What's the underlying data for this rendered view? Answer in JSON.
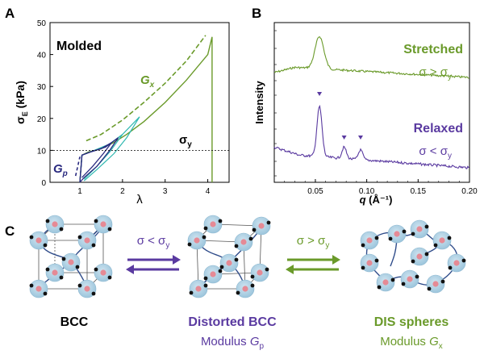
{
  "panels": {
    "a_label": "A",
    "b_label": "B",
    "c_label": "C"
  },
  "colors": {
    "green": "#6a9a2a",
    "purple": "#5a3aa0",
    "navy": "#2a2a80",
    "teal": "#2fb8b0",
    "sphere": "#a9cfe3",
    "core": "#e58a95",
    "chain": "#2f4c8a"
  },
  "chart_data": [
    {
      "type": "line",
      "panel": "A",
      "annotations": {
        "title": "Molded",
        "gx": "G",
        "gx_sub": "x",
        "gp": "G",
        "gp_sub": "p",
        "sigma": "σ",
        "sigma_sub": "y"
      },
      "ylabel": "σ",
      "ylabel_sub": "E",
      "ylabel_unit": "(kPa)",
      "xlabel": "λ",
      "xlim": [
        0.3,
        4.5
      ],
      "ylim": [
        0,
        50
      ],
      "xticks": [
        "1",
        "2",
        "3",
        "4"
      ],
      "yticks": [
        "0",
        "10",
        "20",
        "30",
        "40",
        "50"
      ],
      "yield_stress": 10,
      "series": [
        {
          "style": "green-solid",
          "points": [
            [
              1.0,
              0
            ],
            [
              1.05,
              8.5
            ],
            [
              1.2,
              9.5
            ],
            [
              1.5,
              10.5
            ],
            [
              1.8,
              12.5
            ],
            [
              2.1,
              15
            ],
            [
              2.5,
              19
            ],
            [
              3.0,
              25
            ],
            [
              3.5,
              32
            ],
            [
              4.0,
              40
            ],
            [
              4.1,
              45.5
            ],
            [
              4.1,
              0
            ]
          ]
        },
        {
          "style": "green-dashed",
          "points": [
            [
              1.15,
              13
            ],
            [
              1.5,
              15
            ],
            [
              2.0,
              19.5
            ],
            [
              2.5,
              25
            ],
            [
              3.0,
              31
            ],
            [
              3.5,
              38
            ],
            [
              3.95,
              46
            ]
          ]
        },
        {
          "style": "teal-loop",
          "points": [
            [
              1.0,
              0
            ],
            [
              1.05,
              8.5
            ],
            [
              1.3,
              9.8
            ],
            [
              1.7,
              12
            ],
            [
              2.0,
              15
            ],
            [
              2.4,
              20.5
            ],
            [
              2.1,
              14
            ],
            [
              1.8,
              9
            ],
            [
              1.4,
              4
            ],
            [
              1.1,
              0.5
            ]
          ]
        },
        {
          "style": "teal-loop",
          "points": [
            [
              1.0,
              0
            ],
            [
              1.05,
              8.5
            ],
            [
              1.3,
              9.8
            ],
            [
              1.6,
              11
            ],
            [
              2.0,
              15
            ],
            [
              1.7,
              9.5
            ],
            [
              1.4,
              5
            ],
            [
              1.1,
              1
            ]
          ]
        },
        {
          "style": "navy-loop",
          "points": [
            [
              1.0,
              0
            ],
            [
              1.05,
              8.5
            ],
            [
              1.25,
              9.5
            ],
            [
              1.6,
              11
            ],
            [
              1.9,
              14
            ],
            [
              1.7,
              10
            ],
            [
              1.4,
              5
            ],
            [
              1.1,
              1.5
            ],
            [
              1.0,
              0
            ]
          ]
        },
        {
          "style": "navy-loop",
          "points": [
            [
              1.0,
              0
            ],
            [
              1.05,
              8.5
            ],
            [
              1.25,
              9.5
            ],
            [
              1.5,
              10.5
            ],
            [
              1.75,
              12.5
            ],
            [
              1.55,
              9
            ],
            [
              1.3,
              5
            ],
            [
              1.05,
              1.5
            ]
          ]
        },
        {
          "style": "navy-dashed",
          "points": [
            [
              0.9,
              2
            ],
            [
              0.95,
              5
            ],
            [
              1.0,
              8
            ]
          ]
        }
      ]
    },
    {
      "type": "line",
      "panel": "B",
      "ylabel": "Intensity",
      "xlabel": "q",
      "xlabel_unit": "(Å⁻¹)",
      "xlim": [
        0.01,
        0.2
      ],
      "xticks": [
        "0.05",
        "0.10",
        "0.15",
        "0.20"
      ],
      "series": [
        {
          "name": "Stretched",
          "condition": "σ > σ",
          "condition_sub": "y",
          "color": "#6a9a2a"
        },
        {
          "name": "Relaxed",
          "condition": "σ < σ",
          "condition_sub": "y",
          "color": "#5a3aa0",
          "peak_markers_q": [
            0.054,
            0.078,
            0.094
          ]
        }
      ]
    }
  ],
  "panel_c": {
    "states": [
      {
        "name": "BCC",
        "modulus": ""
      },
      {
        "name": "Distorted BCC",
        "modulus_prefix": "Modulus ",
        "modulus_symbol": "G",
        "modulus_sub": "p"
      },
      {
        "name": "DIS spheres",
        "modulus_prefix": "Modulus ",
        "modulus_symbol": "G",
        "modulus_sub": "x"
      }
    ],
    "arrow1": {
      "text": "σ < σ",
      "sub": "y"
    },
    "arrow2": {
      "text": "σ > σ",
      "sub": "y"
    }
  }
}
